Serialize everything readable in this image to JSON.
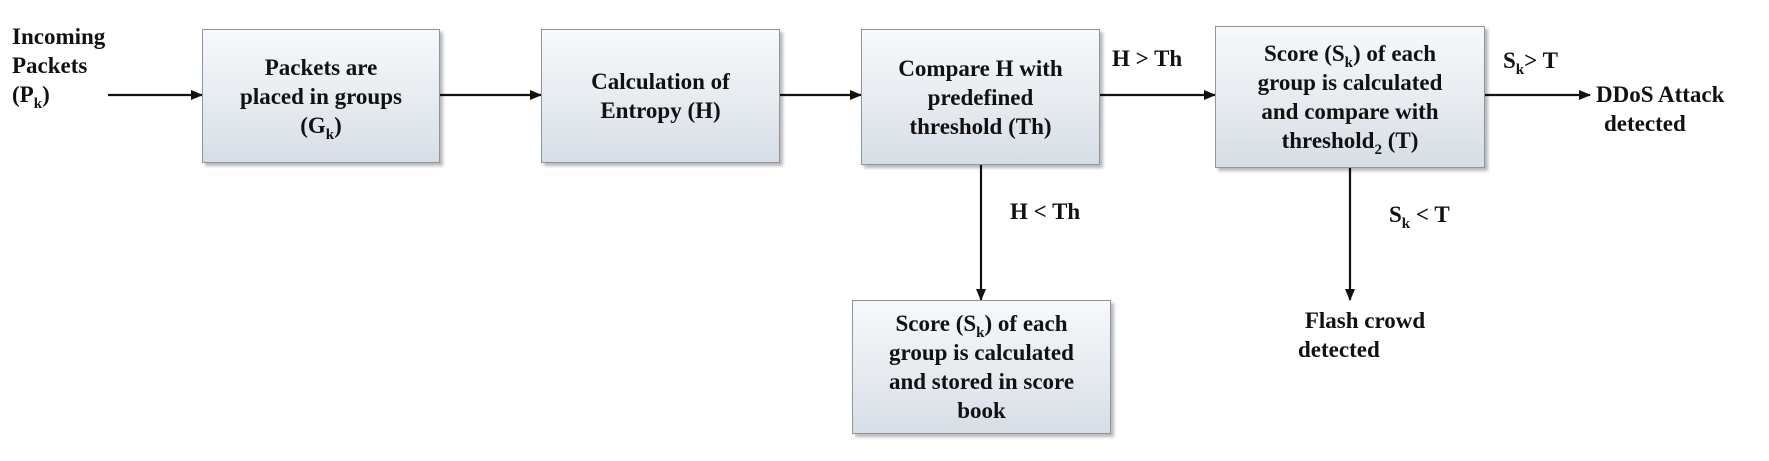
{
  "diagram": {
    "input": {
      "line1": "Incoming",
      "line2": "Packets",
      "symbol_pre": "(P",
      "symbol_sub": "k",
      "symbol_post": ")"
    },
    "grouping": {
      "line1": "Packets are",
      "line2": "placed in groups",
      "symbol_pre": "(G",
      "symbol_sub": "k",
      "symbol_post": ")"
    },
    "entropy": {
      "line1": "Calculation of",
      "line2": "Entropy (H)"
    },
    "compare": {
      "line1": "Compare H with",
      "line2": "predefined",
      "line3": "threshold (Th)"
    },
    "score_compare": {
      "line1_pre": "Score (S",
      "line1_sub": "k",
      "line1_post": ")",
      "line2": "group is calculated",
      "line3": "and compare with",
      "line4_pre": "threshold",
      "line4_sub": "2",
      "line4_post": " (T)",
      "tail1": " of each"
    },
    "score_store": {
      "line1_pre": "Score (S",
      "line1_sub": "k",
      "line1_post": ") of each",
      "line2": "group is calculated",
      "line3": "and stored in score",
      "line4": "book"
    },
    "edges": {
      "h_gt_th": "H > Th",
      "h_lt_th": "H < Th",
      "sk_gt_pre": "S",
      "sk_gt_sub": "k",
      "sk_gt_post": "> T",
      "sk_lt_pre": "S",
      "sk_lt_sub": "k",
      "sk_lt_post": " < T"
    },
    "outputs": {
      "ddos_line1": "DDoS Attack",
      "ddos_line2": "detected",
      "flash_line1": "Flash crowd",
      "flash_line2": "detected"
    }
  }
}
